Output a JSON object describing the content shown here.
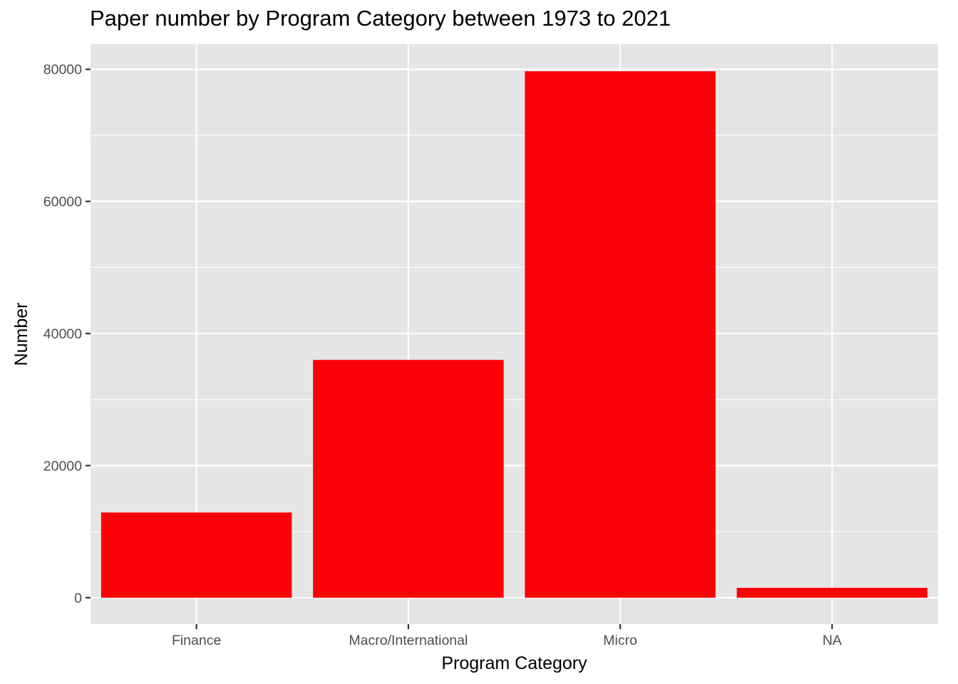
{
  "chart_data": {
    "type": "bar",
    "title": "Paper number by Program Category between 1973 to 2021",
    "xlabel": "Program Category",
    "ylabel": "Number",
    "categories": [
      "Finance",
      "Macro/International",
      "Micro",
      "NA"
    ],
    "values": [
      12900,
      36000,
      79700,
      1500
    ],
    "ylim": [
      -4000,
      83800
    ],
    "yticks": [
      0,
      20000,
      40000,
      60000,
      80000
    ],
    "ytick_labels": [
      "0",
      "20000",
      "40000",
      "60000",
      "80000"
    ],
    "grid": true,
    "legend": "none",
    "bar_color": "#fc0008",
    "panel_color": "#e5e5e5",
    "grid_color": "#ffffff",
    "axis_text_color": "#4d4d4d"
  }
}
